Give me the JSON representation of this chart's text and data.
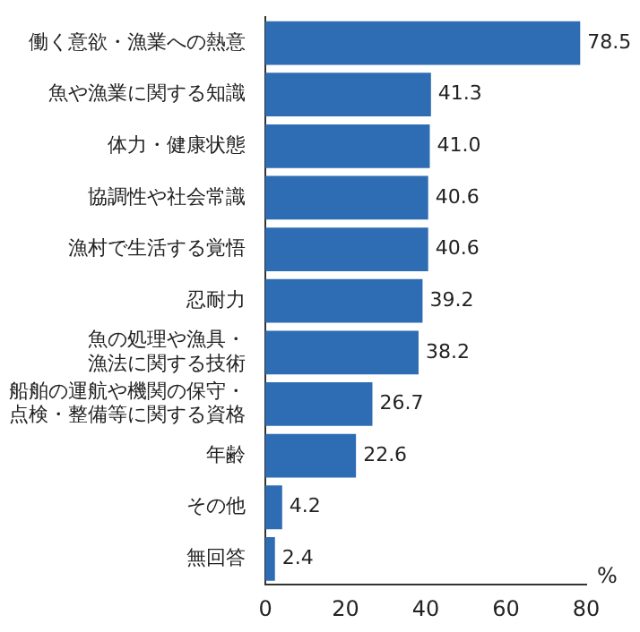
{
  "chart_data": {
    "type": "bar",
    "orientation": "horizontal",
    "categories": [
      "働く意欲・漁業への熱意",
      "魚や漁業に関する知識",
      "体力・健康状態",
      "協調性や社会常識",
      "漁村で生活する覚悟",
      "忍耐力",
      "魚の処理や漁具・漁法に関する技術",
      "船舶の運航や機関の保守・点検・整備等に関する資格",
      "年齢",
      "その他",
      "無回答"
    ],
    "values": [
      78.5,
      41.3,
      41.0,
      40.6,
      40.6,
      39.2,
      38.2,
      26.7,
      22.6,
      4.2,
      2.4
    ],
    "value_labels": [
      "78.5",
      "41.3",
      "41.0",
      "40.6",
      "40.6",
      "39.2",
      "38.2",
      "26.7",
      "22.6",
      "4.2",
      "2.4"
    ],
    "color": "#2e6db4",
    "xlim": [
      0,
      80
    ],
    "xticks": [
      0,
      20,
      40,
      60,
      80
    ],
    "xlabel": "%",
    "grid": false,
    "legend": false
  }
}
